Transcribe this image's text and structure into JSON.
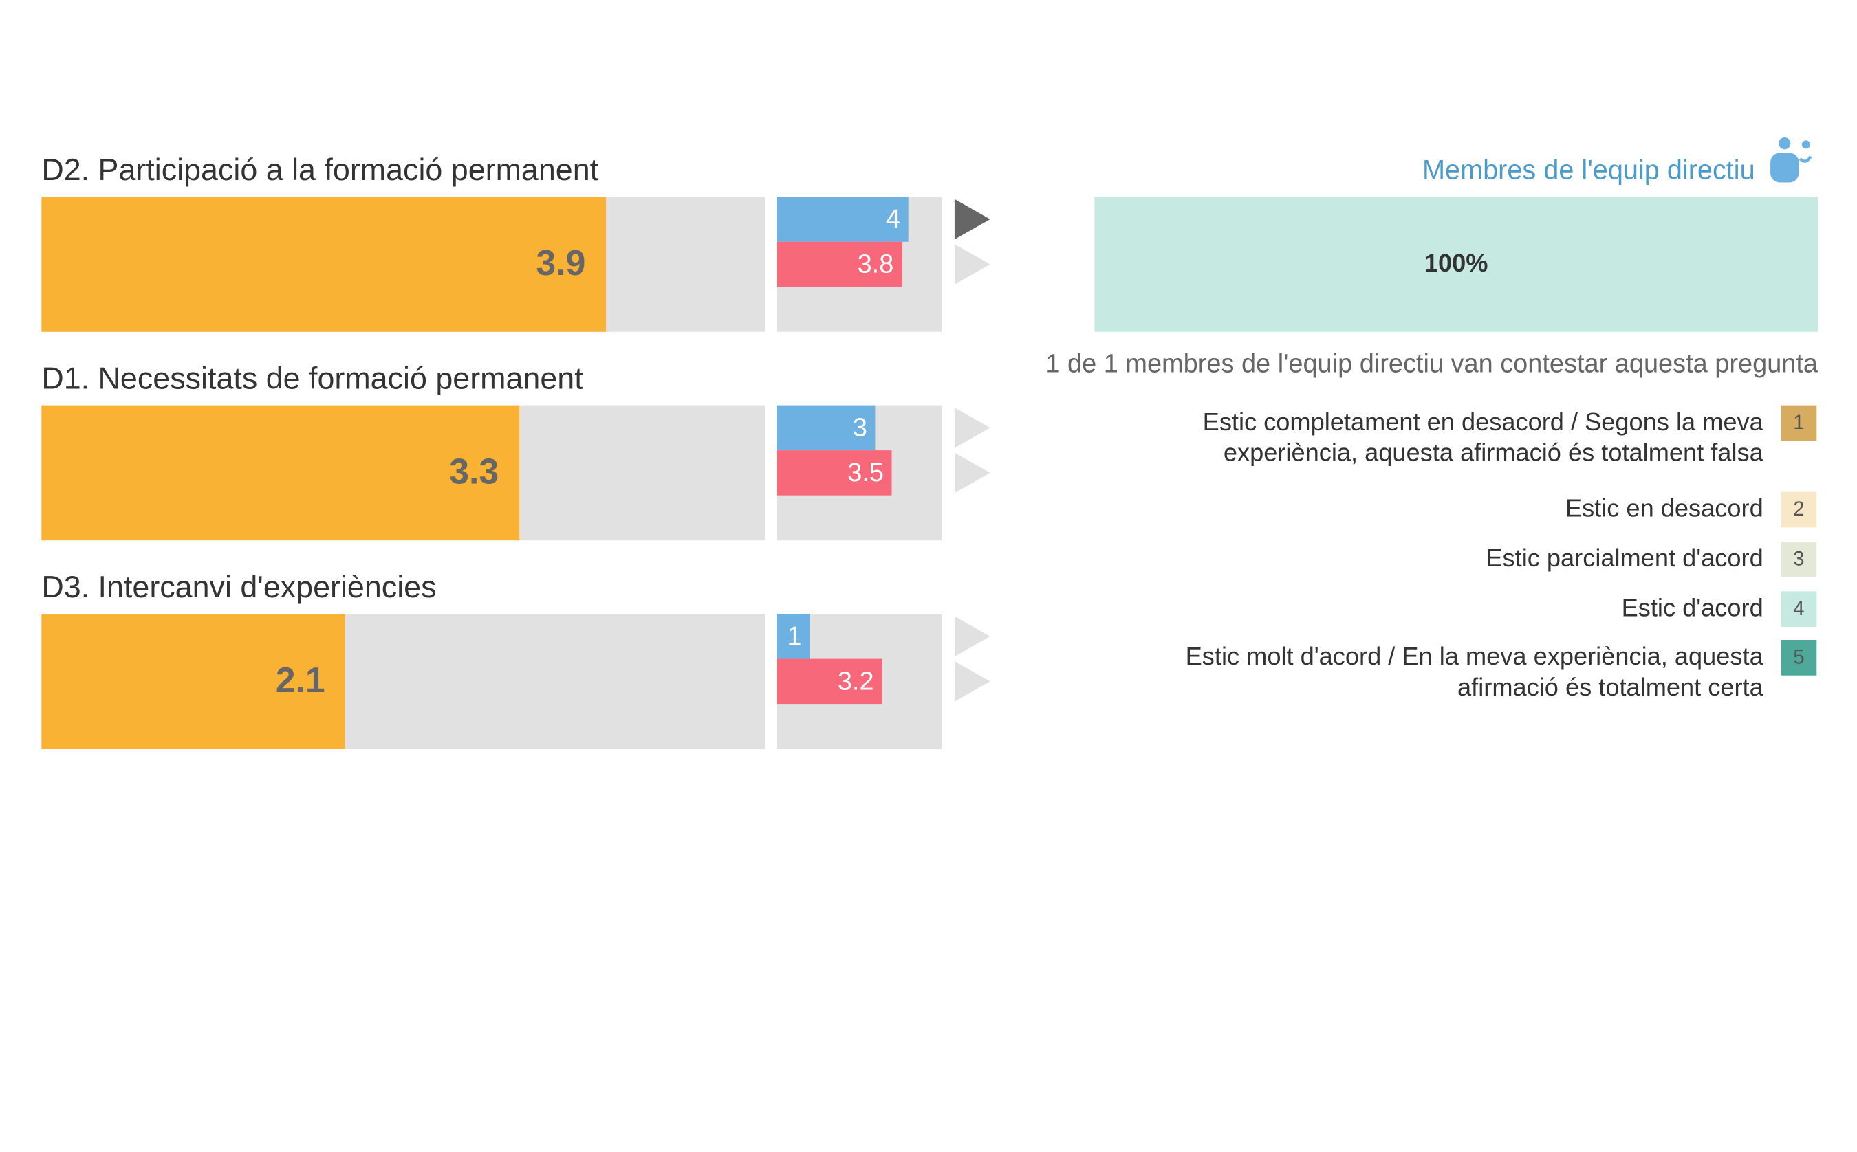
{
  "header": {
    "respondent_group": "Membres de l'equip directiu",
    "icon": "people-icon"
  },
  "chart_data": {
    "type": "bar",
    "categories": [
      "D2. Participació a la formació permanent",
      "D1. Necessitats de formació permanent",
      "D3. Intercanvi d'experiències"
    ],
    "xlim": [
      0,
      5
    ],
    "series": [
      {
        "values": [
          3.9,
          3.3,
          2.1
        ],
        "color": "#f9b233"
      },
      {
        "values": [
          4,
          3,
          1
        ],
        "color": "#6cb1e2"
      },
      {
        "values": [
          3.8,
          3.5,
          3.2
        ],
        "color": "#f7687a"
      }
    ],
    "value_labels": {
      "main": [
        "3.9",
        "3.3",
        "2.1"
      ],
      "blue": [
        "4",
        "3",
        "1"
      ],
      "red": [
        "3.8",
        "3.5",
        "3.2"
      ]
    },
    "selected_row": 0,
    "selected_arrow": "blue"
  },
  "response": {
    "bar_percent": 100,
    "bar_label": "100%",
    "bar_color": "#c6e9e2",
    "summary": "1 de 1 membres de l'equip directiu van contestar aquesta pregunta"
  },
  "legend": [
    {
      "num": "1",
      "lines": [
        "Estic completament en desacord / Segons la meva",
        "experiència, aquesta afirmació és totalment falsa"
      ],
      "color": "#d5ac60"
    },
    {
      "num": "2",
      "lines": [
        "Estic en desacord"
      ],
      "color": "#f8e8c7"
    },
    {
      "num": "3",
      "lines": [
        "Estic parcialment d'acord"
      ],
      "color": "#e3e8d7"
    },
    {
      "num": "4",
      "lines": [
        "Estic d'acord"
      ],
      "color": "#c6e9e2"
    },
    {
      "num": "5",
      "lines": [
        "Estic molt d'acord / En la meva experiència, aquesta",
        "afirmació és totalment certa"
      ],
      "color": "#4ea99b"
    }
  ],
  "colors": {
    "track": "#e1e1e1",
    "arrow_active": "#666666",
    "arrow_inactive": "#e1e1e1",
    "header_text": "#4a9bc9"
  }
}
